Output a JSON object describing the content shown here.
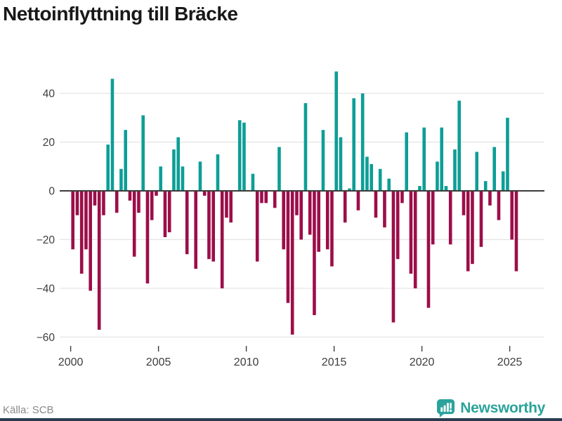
{
  "header": {
    "title": "Nettoinflyttning till Bräcke"
  },
  "footer": {
    "source": "Källa: SCB",
    "brand": "Newsworthy"
  },
  "colors": {
    "positive_bar": "#0d9e96",
    "negative_bar": "#9c0e49",
    "grid": "#e5e5e5",
    "zero_line": "#3b3b3b",
    "axis_text": "#3d3d3d",
    "title_text": "#191919",
    "source_text": "#8a8a8a",
    "brand_teal": "#2aa39b",
    "bottom_border": "#2a3b50"
  },
  "chart_data": {
    "type": "bar",
    "title": "Nettoinflyttning till Bräcke",
    "xlabel": "",
    "ylabel": "",
    "source": "SCB",
    "grid": true,
    "legend_position": "none",
    "ylim": [
      -60,
      50
    ],
    "y_tick_values": [
      40,
      20,
      0,
      -20,
      -40,
      -60
    ],
    "y_tick_labels": [
      "40",
      "20",
      "0",
      "−20",
      "−40",
      "−60"
    ],
    "x_tick_years": [
      2000,
      2005,
      2010,
      2015,
      2020,
      2025
    ],
    "x_tick_labels": [
      "2000",
      "2005",
      "2010",
      "2015",
      "2020",
      "2025"
    ],
    "categories": [
      "2000 Q1",
      "2000 Q2",
      "2000 Q3",
      "2000 Q4",
      "2001 Q1",
      "2001 Q2",
      "2001 Q3",
      "2001 Q4",
      "2002 Q1",
      "2002 Q2",
      "2002 Q3",
      "2002 Q4",
      "2003 Q1",
      "2003 Q2",
      "2003 Q3",
      "2003 Q4",
      "2004 Q1",
      "2004 Q2",
      "2004 Q3",
      "2004 Q4",
      "2005 Q1",
      "2005 Q2",
      "2005 Q3",
      "2005 Q4",
      "2006 Q1",
      "2006 Q2",
      "2006 Q3",
      "2006 Q4",
      "2007 Q1",
      "2007 Q2",
      "2007 Q3",
      "2007 Q4",
      "2008 Q1",
      "2008 Q2",
      "2008 Q3",
      "2008 Q4",
      "2009 Q1",
      "2009 Q2",
      "2009 Q3",
      "2009 Q4",
      "2010 Q1",
      "2010 Q2",
      "2010 Q3",
      "2010 Q4",
      "2011 Q1",
      "2011 Q2",
      "2011 Q3",
      "2011 Q4",
      "2012 Q1",
      "2012 Q2",
      "2012 Q3",
      "2012 Q4",
      "2013 Q1",
      "2013 Q2",
      "2013 Q3",
      "2013 Q4",
      "2014 Q1",
      "2014 Q2",
      "2014 Q3",
      "2014 Q4",
      "2015 Q1",
      "2015 Q2",
      "2015 Q3",
      "2015 Q4",
      "2016 Q1",
      "2016 Q2",
      "2016 Q3",
      "2016 Q4",
      "2017 Q1",
      "2017 Q2",
      "2017 Q3",
      "2017 Q4",
      "2018 Q1",
      "2018 Q2",
      "2018 Q3",
      "2018 Q4",
      "2019 Q1",
      "2019 Q2",
      "2019 Q3",
      "2019 Q4",
      "2020 Q1",
      "2020 Q2",
      "2020 Q3",
      "2020 Q4",
      "2021 Q1",
      "2021 Q2",
      "2021 Q3",
      "2021 Q4",
      "2022 Q1",
      "2022 Q2",
      "2022 Q3",
      "2022 Q4",
      "2023 Q1",
      "2023 Q2",
      "2023 Q3",
      "2023 Q4",
      "2024 Q1",
      "2024 Q2",
      "2024 Q3",
      "2024 Q4",
      "2025 Q1",
      "2025 Q2"
    ],
    "values": [
      -24,
      -10,
      -34,
      -24,
      -41,
      -6,
      -57,
      -10,
      19,
      46,
      -9,
      9,
      25,
      -4,
      -27,
      -9,
      31,
      -38,
      -12,
      -2,
      10,
      -19,
      -17,
      17,
      22,
      10,
      -26,
      0,
      -32,
      12,
      -2,
      -28,
      -29,
      15,
      -40,
      -11,
      -13,
      0,
      29,
      28,
      0,
      7,
      -29,
      -5,
      -5,
      0,
      -7,
      18,
      -24,
      -46,
      -59,
      -10,
      -20,
      36,
      -18,
      -51,
      -25,
      25,
      -24,
      -31,
      49,
      22,
      -13,
      1,
      38,
      -8,
      40,
      14,
      11,
      -11,
      9,
      -15,
      5,
      -54,
      -28,
      -5,
      24,
      -34,
      -40,
      2,
      26,
      -48,
      -22,
      12,
      26,
      2,
      -22,
      17,
      37,
      -10,
      -33,
      -30,
      16,
      -23,
      4,
      -6,
      18,
      -12,
      8,
      30,
      -20,
      -33
    ]
  }
}
